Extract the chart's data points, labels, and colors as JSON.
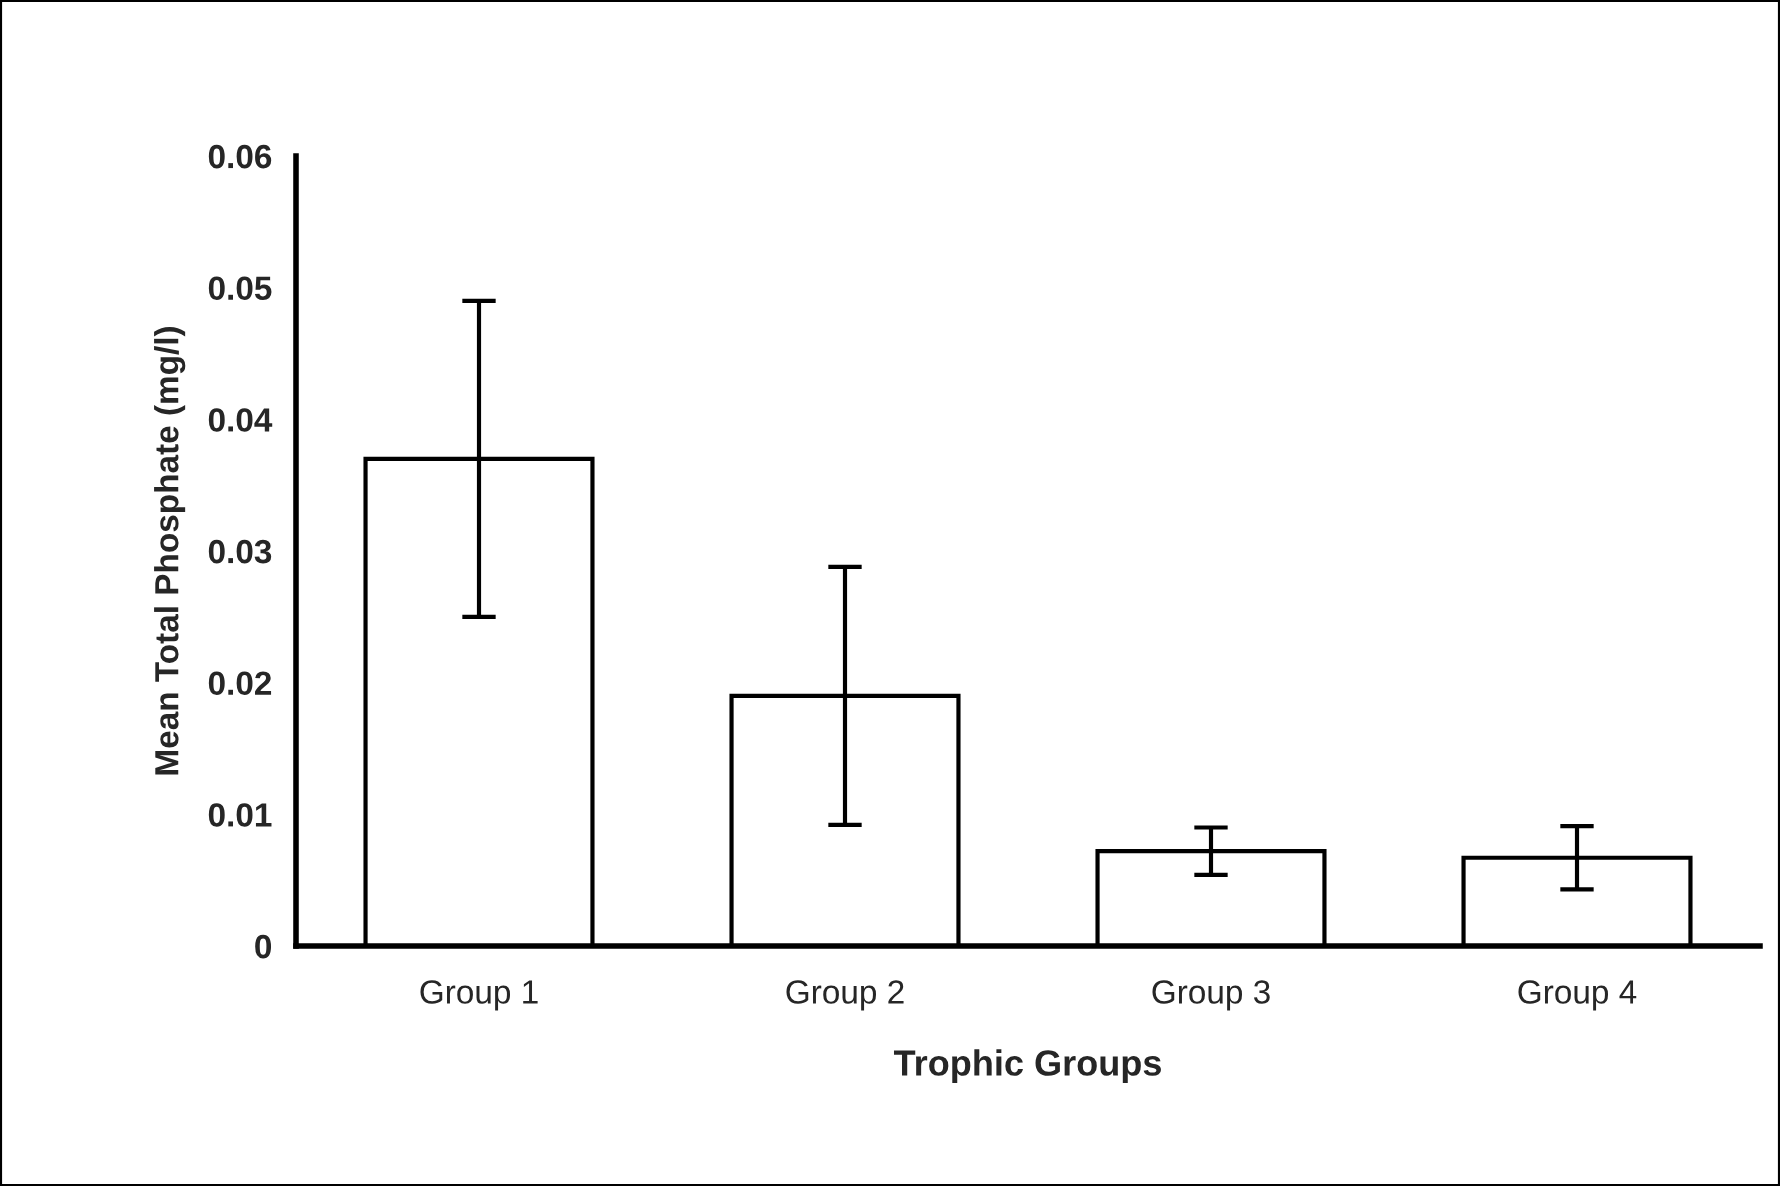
{
  "chart_data": {
    "type": "bar",
    "xlabel": "Trophic Groups",
    "ylabel": "Mean Total Phosphate (mg/l)",
    "categories": [
      "Group 1",
      "Group 2",
      "Group 3",
      "Group 4"
    ],
    "values": [
      0.037,
      0.019,
      0.0072,
      0.0067
    ],
    "errors": [
      0.012,
      0.0098,
      0.0018,
      0.0024
    ],
    "color": "#ffffff",
    "ylim": [
      0,
      0.06
    ],
    "yticks": [
      0,
      0.01,
      0.02,
      0.03,
      0.04,
      0.05,
      0.06
    ],
    "grid": false
  }
}
